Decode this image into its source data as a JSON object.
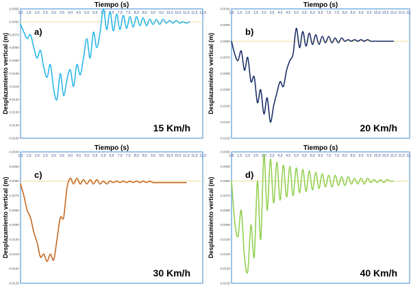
{
  "chart_data": [
    {
      "type": "line",
      "panel_label": "a)",
      "speed_label": "15 Km/h",
      "xlabel": "Tiempo (s)",
      "ylabel": "Desplazamiento vertical (m)",
      "xlim": [
        1.0,
        12.0
      ],
      "ylim": [
        -0.015,
        -0.005
      ],
      "x_ticks": [
        "1,0",
        "1,5",
        "2,0",
        "2,5",
        "3,0",
        "3,5",
        "4,0",
        "4,5",
        "5,0",
        "5,5",
        "6,0",
        "6,5",
        "7,0",
        "7,5",
        "8,0",
        "8,5",
        "9,0",
        "9,5",
        "10,0",
        "10,5",
        "11,0",
        "11,5",
        "12,0"
      ],
      "y_ticks": [
        "-0,0050",
        "-0,0060",
        "-0,0070",
        "-0,0080",
        "-0,0090",
        "-0,0100",
        "-0,0110",
        "-0,0120",
        "-0,0130",
        "-0,0140",
        "-0,0150"
      ],
      "color": "#29b6e8",
      "grid": false,
      "series": [
        {
          "x": [
            1.0,
            1.2,
            1.4,
            1.6,
            1.8,
            2.0,
            2.2,
            2.4,
            2.6,
            2.8,
            3.0,
            3.2,
            3.4,
            3.6,
            3.8,
            4.0,
            4.2,
            4.4,
            4.6,
            4.8,
            5.0,
            5.2,
            5.4,
            5.6,
            5.8,
            6.0,
            6.2,
            6.4,
            6.6,
            6.8,
            7.0,
            7.2,
            7.4,
            7.6,
            7.8,
            8.0,
            8.2,
            8.4,
            8.6,
            8.8,
            9.0,
            9.2,
            9.4,
            9.6,
            9.8,
            10.0,
            10.2,
            10.4,
            10.6,
            10.8,
            11.0,
            11.2
          ],
          "y": [
            -0.0062,
            -0.0068,
            -0.0073,
            -0.007,
            -0.008,
            -0.0088,
            -0.0082,
            -0.0095,
            -0.0103,
            -0.0093,
            -0.0112,
            -0.012,
            -0.01,
            -0.0117,
            -0.0105,
            -0.0097,
            -0.011,
            -0.0093,
            -0.0101,
            -0.0088,
            -0.0073,
            -0.0088,
            -0.0068,
            -0.008,
            -0.0068,
            -0.005,
            -0.0066,
            -0.0052,
            -0.0067,
            -0.0054,
            -0.0066,
            -0.0055,
            -0.0065,
            -0.0056,
            -0.0064,
            -0.0056,
            -0.0063,
            -0.0057,
            -0.0063,
            -0.0058,
            -0.0062,
            -0.0058,
            -0.0062,
            -0.0058,
            -0.0061,
            -0.0059,
            -0.0061,
            -0.0059,
            -0.0061,
            -0.006,
            -0.0061,
            -0.006
          ]
        }
      ]
    },
    {
      "type": "line",
      "panel_label": "b)",
      "speed_label": "20 Km/h",
      "xlabel": "Tiempo (s)",
      "ylabel": "Desplazamiento vertical (m)",
      "xlim": [
        1.0,
        12.0
      ],
      "ylim": [
        -0.012,
        -0.004
      ],
      "x_ticks": [
        "1,0",
        "1,5",
        "2,0",
        "2,5",
        "3,0",
        "3,5",
        "4,0",
        "4,5",
        "5,0",
        "5,5",
        "6,0",
        "6,5",
        "7,0",
        "7,5",
        "8,0",
        "8,5",
        "9,0",
        "9,5",
        "10,0",
        "10,5",
        "11,0",
        "11,5",
        "12,0"
      ],
      "y_ticks": [
        "-0,0040",
        "-0,0050",
        "-0,0060",
        "-0,0070",
        "-0,0080",
        "-0,0090",
        "-0,0100",
        "-0,0110",
        "-0,0120"
      ],
      "color": "#1b2f66",
      "grid": false,
      "series": [
        {
          "x": [
            1.0,
            1.2,
            1.4,
            1.6,
            1.8,
            2.0,
            2.2,
            2.4,
            2.6,
            2.8,
            3.0,
            3.2,
            3.4,
            3.6,
            3.8,
            4.0,
            4.2,
            4.4,
            4.6,
            4.8,
            5.0,
            5.2,
            5.4,
            5.6,
            5.8,
            6.0,
            6.2,
            6.4,
            6.6,
            6.8,
            7.0,
            7.2,
            7.4,
            7.6,
            7.8,
            8.0,
            8.2,
            8.4,
            8.6,
            8.8,
            9.0,
            9.2,
            9.4,
            9.6,
            9.8,
            10.0,
            10.2,
            10.4,
            10.6,
            10.8,
            11.0
          ],
          "y": [
            -0.006,
            -0.0068,
            -0.0072,
            -0.0066,
            -0.0078,
            -0.007,
            -0.0085,
            -0.0082,
            -0.0098,
            -0.009,
            -0.0105,
            -0.0095,
            -0.011,
            -0.01,
            -0.0092,
            -0.0085,
            -0.0088,
            -0.0078,
            -0.0072,
            -0.0068,
            -0.0052,
            -0.0064,
            -0.0054,
            -0.0063,
            -0.0055,
            -0.0062,
            -0.0056,
            -0.0062,
            -0.0057,
            -0.0061,
            -0.0057,
            -0.0061,
            -0.0058,
            -0.0061,
            -0.0058,
            -0.006,
            -0.0059,
            -0.006,
            -0.0059,
            -0.006,
            -0.0059,
            -0.006,
            -0.0059,
            -0.006,
            -0.006,
            -0.006,
            -0.006,
            -0.006,
            -0.006,
            -0.006,
            -0.006
          ]
        }
      ]
    },
    {
      "type": "line",
      "panel_label": "c)",
      "speed_label": "30 Km/h",
      "xlabel": "Tiempo (s)",
      "ylabel": "Desplazamiento vertical (m)",
      "xlim": [
        1.0,
        12.0
      ],
      "ylim": [
        -0.013,
        -0.004
      ],
      "x_ticks": [
        "1,0",
        "1,5",
        "2,0",
        "2,5",
        "3,0",
        "3,5",
        "4,0",
        "4,5",
        "5,0",
        "5,5",
        "6,0",
        "6,5",
        "7,0",
        "7,5",
        "8,0",
        "8,5",
        "9,0",
        "9,5",
        "10,0",
        "10,5",
        "11,0",
        "11,5",
        "12,0"
      ],
      "y_ticks": [
        "-0,0040",
        "-0,0050",
        "-0,0060",
        "-0,0070",
        "-0,0080",
        "-0,0090",
        "-0,0100",
        "-0,0110",
        "-0,0120",
        "-0,0130"
      ],
      "color": "#c5671f",
      "grid": false,
      "series": [
        {
          "x": [
            1.0,
            1.2,
            1.4,
            1.6,
            1.8,
            2.0,
            2.2,
            2.4,
            2.6,
            2.8,
            3.0,
            3.2,
            3.4,
            3.6,
            3.8,
            4.0,
            4.2,
            4.4,
            4.6,
            4.8,
            5.0,
            5.2,
            5.4,
            5.6,
            5.8,
            6.0,
            6.2,
            6.4,
            6.6,
            6.8,
            7.0,
            7.2,
            7.4,
            7.6,
            7.8,
            8.0,
            8.2,
            8.4,
            8.6,
            8.8,
            9.0,
            9.5,
            10.0,
            10.5,
            11.0
          ],
          "y": [
            -0.0062,
            -0.007,
            -0.008,
            -0.0085,
            -0.0095,
            -0.0102,
            -0.0112,
            -0.011,
            -0.0115,
            -0.011,
            -0.0114,
            -0.01,
            -0.0085,
            -0.0085,
            -0.0065,
            -0.0058,
            -0.0062,
            -0.0058,
            -0.0062,
            -0.0059,
            -0.0062,
            -0.0059,
            -0.0062,
            -0.0059,
            -0.0062,
            -0.006,
            -0.0062,
            -0.006,
            -0.0061,
            -0.006,
            -0.0061,
            -0.006,
            -0.0061,
            -0.006,
            -0.0061,
            -0.006,
            -0.0061,
            -0.006,
            -0.0061,
            -0.006,
            -0.0061,
            -0.0061,
            -0.0061,
            -0.0061,
            -0.0061
          ]
        }
      ]
    },
    {
      "type": "line",
      "panel_label": "d)",
      "speed_label": "40 Km/h",
      "xlabel": "Tiempo (s)",
      "ylabel": "Desplazamiento vertical (m)",
      "xlim": [
        1.0,
        12.0
      ],
      "ylim": [
        -0.013,
        -0.004
      ],
      "x_ticks": [
        "1,0",
        "1,5",
        "2,0",
        "2,5",
        "3,0",
        "3,5",
        "4,0",
        "4,5",
        "5,0",
        "5,5",
        "6,0",
        "6,5",
        "7,0",
        "7,5",
        "8,0",
        "8,5",
        "9,0",
        "9,5",
        "10,0",
        "10,5",
        "11,0",
        "11,5",
        "12,0"
      ],
      "y_ticks": [
        "-0,0040",
        "-0,0050",
        "-0,0060",
        "-0,0070",
        "-0,0080",
        "-0,0090",
        "-0,0100",
        "-0,0110",
        "-0,0120",
        "-0,0130"
      ],
      "color": "#92d050",
      "grid": false,
      "series": [
        {
          "x": [
            1.0,
            1.2,
            1.4,
            1.6,
            1.8,
            2.0,
            2.2,
            2.4,
            2.6,
            2.8,
            3.0,
            3.2,
            3.4,
            3.6,
            3.8,
            4.0,
            4.2,
            4.4,
            4.6,
            4.8,
            5.0,
            5.2,
            5.4,
            5.6,
            5.8,
            6.0,
            6.2,
            6.4,
            6.6,
            6.8,
            7.0,
            7.2,
            7.4,
            7.6,
            7.8,
            8.0,
            8.2,
            8.4,
            8.6,
            8.8,
            9.0,
            9.2,
            9.4,
            9.6,
            9.8,
            10.0,
            10.2,
            10.4,
            10.6,
            10.8,
            11.0
          ],
          "y": [
            -0.006,
            -0.0088,
            -0.0098,
            -0.008,
            -0.0112,
            -0.0122,
            -0.009,
            -0.0112,
            -0.006,
            -0.01,
            -0.0042,
            -0.008,
            -0.0045,
            -0.0075,
            -0.0047,
            -0.0073,
            -0.0049,
            -0.0071,
            -0.005,
            -0.007,
            -0.0051,
            -0.0068,
            -0.0052,
            -0.0067,
            -0.0053,
            -0.0066,
            -0.0054,
            -0.0065,
            -0.0055,
            -0.0064,
            -0.0056,
            -0.0064,
            -0.0056,
            -0.0063,
            -0.0057,
            -0.0063,
            -0.0057,
            -0.0062,
            -0.0058,
            -0.0062,
            -0.0058,
            -0.0062,
            -0.0058,
            -0.0061,
            -0.0059,
            -0.0061,
            -0.0059,
            -0.0061,
            -0.0059,
            -0.006,
            -0.006
          ]
        }
      ]
    }
  ]
}
